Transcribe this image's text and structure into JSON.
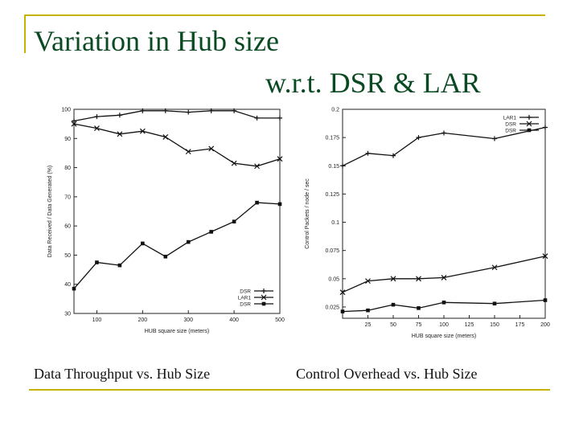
{
  "slide": {
    "title_line1": "Variation in Hub size",
    "title_line2": "w.r.t. DSR & LAR",
    "caption_left": "Data Throughput vs. Hub Size",
    "caption_right": "Control Overhead vs. Hub Size",
    "accent_color": "#c8b400",
    "title_color": "#0a4a22"
  },
  "chart_data": [
    {
      "type": "line",
      "xlabel": "HUB square size (meters)",
      "ylabel": "Data Received / Data Generated (%)",
      "xlim": [
        50,
        500
      ],
      "ylim": [
        30,
        100
      ],
      "xticks": [
        100,
        200,
        300,
        400,
        500
      ],
      "yticks": [
        30,
        40,
        50,
        60,
        70,
        80,
        90,
        100
      ],
      "legend_position": "bottom-right",
      "grid": false,
      "series": [
        {
          "name": "DSR",
          "x": [
            50,
            100,
            150,
            200,
            250,
            300,
            350,
            400,
            450,
            500
          ],
          "values": [
            96,
            97.5,
            98,
            99.5,
            99.5,
            99,
            99.5,
            99.5,
            97,
            97
          ]
        },
        {
          "name": "LAR1",
          "x": [
            50,
            100,
            150,
            200,
            250,
            300,
            350,
            400,
            450,
            500
          ],
          "values": [
            95,
            93.5,
            91.5,
            92.5,
            90.5,
            85.5,
            86.5,
            81.5,
            80.5,
            83
          ]
        },
        {
          "name": "DSR",
          "x": [
            50,
            100,
            150,
            200,
            250,
            300,
            350,
            400,
            450,
            500
          ],
          "values": [
            38.5,
            47.5,
            46.5,
            54,
            49.5,
            54.5,
            58,
            61.5,
            68,
            67.5
          ]
        }
      ]
    },
    {
      "type": "line",
      "xlabel": "HUB square size (meters)",
      "ylabel": "Control Packets / node / sec",
      "xlim": [
        0,
        200
      ],
      "ylim": [
        0.015,
        0.2
      ],
      "xticks": [
        25,
        50,
        75,
        100,
        125,
        150,
        175,
        200
      ],
      "yticks": [
        0.025,
        0.05,
        0.075,
        0.1,
        0.125,
        0.15,
        0.175,
        0.2
      ],
      "legend_position": "top-right",
      "grid": false,
      "series": [
        {
          "name": "LAR1",
          "x": [
            0,
            25,
            50,
            75,
            100,
            150,
            200
          ],
          "values": [
            0.15,
            0.161,
            0.159,
            0.175,
            0.179,
            0.174,
            0.184
          ]
        },
        {
          "name": "DSR",
          "x": [
            0,
            25,
            50,
            75,
            100,
            150,
            200
          ],
          "values": [
            0.038,
            0.048,
            0.05,
            0.05,
            0.051,
            0.06,
            0.07
          ]
        },
        {
          "name": "DSR",
          "x": [
            0,
            25,
            50,
            75,
            100,
            150,
            200
          ],
          "values": [
            0.021,
            0.022,
            0.027,
            0.024,
            0.029,
            0.028,
            0.031
          ]
        }
      ]
    }
  ]
}
